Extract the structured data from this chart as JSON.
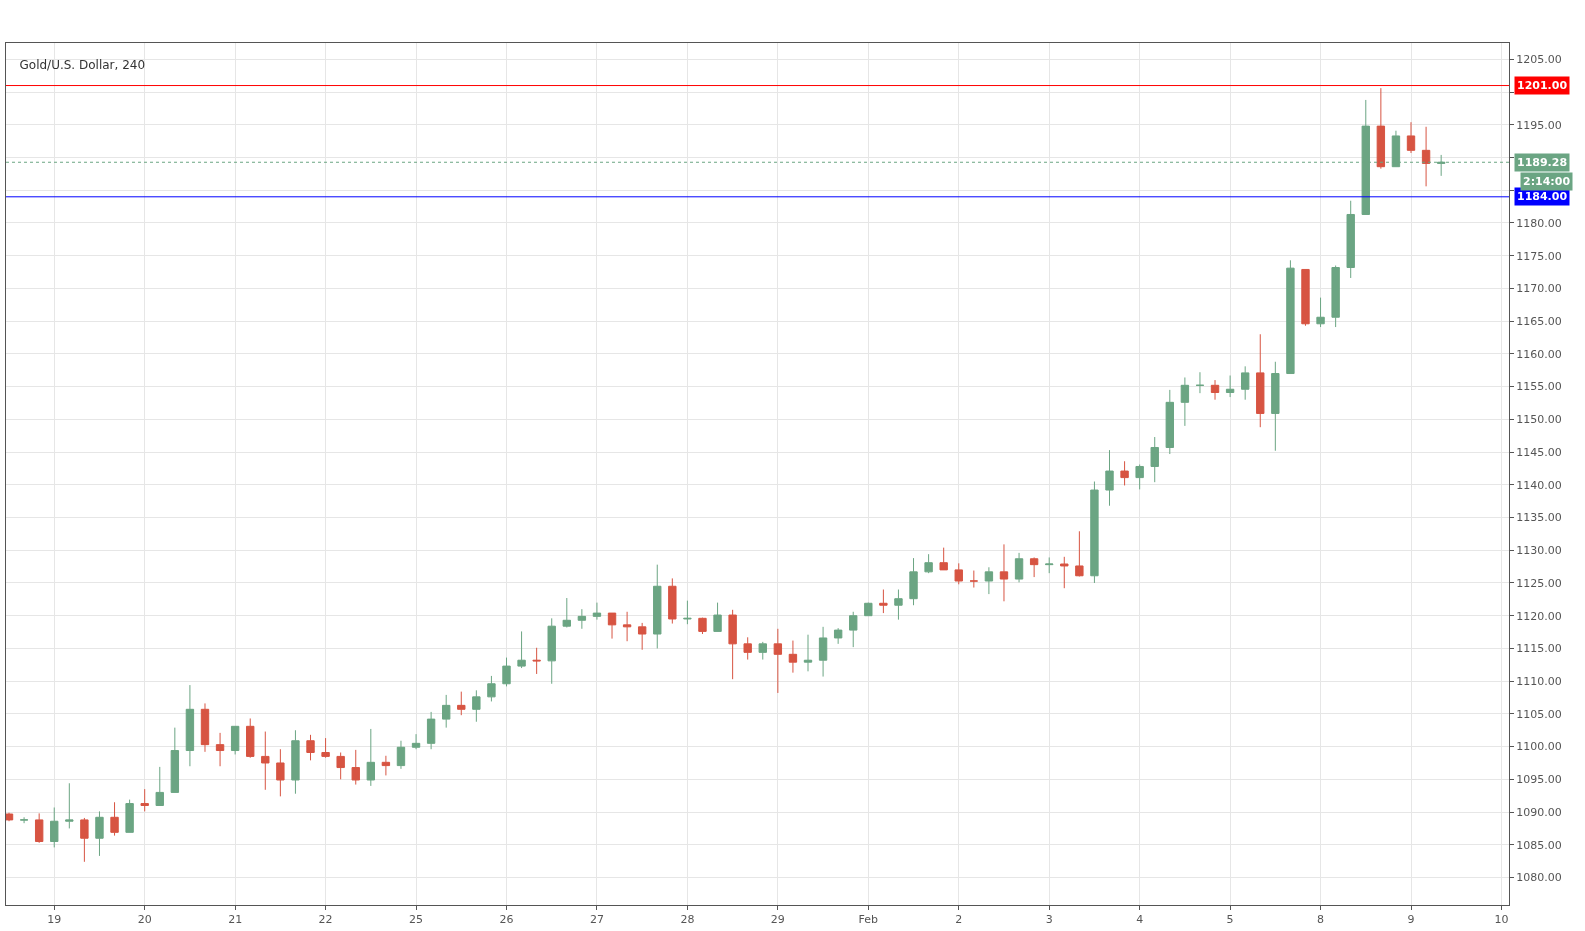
{
  "chart_data": {
    "type": "candlestick",
    "title": "Gold/U.S. Dollar, 240",
    "categories": [
      null,
      null,
      null,
      "19",
      null,
      null,
      null,
      null,
      null,
      "20",
      null,
      null,
      null,
      null,
      null,
      "21",
      null,
      null,
      null,
      null,
      null,
      "22",
      null,
      null,
      null,
      null,
      null,
      "25",
      null,
      null,
      null,
      null,
      null,
      "26",
      null,
      null,
      null,
      null,
      null,
      "27",
      null,
      null,
      null,
      null,
      null,
      "28",
      null,
      null,
      null,
      null,
      null,
      "29",
      null,
      null,
      null,
      null,
      null,
      "Feb",
      null,
      null,
      null,
      null,
      null,
      "2",
      null,
      null,
      null,
      null,
      null,
      "3",
      null,
      null,
      null,
      null,
      null,
      "4",
      null,
      null,
      null,
      null,
      null,
      "5",
      null,
      null,
      null,
      null,
      null,
      "8",
      null,
      null,
      null,
      null,
      null,
      "9",
      null,
      null,
      null,
      null,
      null,
      "10"
    ],
    "ohlc": [
      [
        1089.7,
        1089.9,
        1088.6,
        1088.8
      ],
      [
        1088.8,
        1089.2,
        1088.3,
        1088.8
      ],
      [
        1088.8,
        1089.8,
        1085.3,
        1085.5
      ],
      [
        1085.5,
        1090.7,
        1084.6,
        1088.6
      ],
      [
        1088.6,
        1094.4,
        1087.5,
        1088.8
      ],
      [
        1088.8,
        1089.1,
        1082.4,
        1086.0
      ],
      [
        1086.0,
        1090.1,
        1083.3,
        1089.2
      ],
      [
        1089.2,
        1091.5,
        1086.4,
        1086.9
      ],
      [
        1086.9,
        1091.9,
        1086.9,
        1091.3
      ],
      [
        1091.3,
        1093.5,
        1090.1,
        1091.0
      ],
      [
        1091.0,
        1096.9,
        1091.0,
        1093.0
      ],
      [
        1093.0,
        1102.9,
        1093.0,
        1099.4
      ],
      [
        1099.4,
        1109.4,
        1097.0,
        1105.7
      ],
      [
        1105.7,
        1106.6,
        1099.2,
        1100.3
      ],
      [
        1100.3,
        1102.1,
        1097.0,
        1099.4
      ],
      [
        1099.4,
        1103.1,
        1098.8,
        1103.1
      ],
      [
        1103.1,
        1104.3,
        1098.3,
        1098.5
      ],
      [
        1098.5,
        1102.3,
        1093.4,
        1097.5
      ],
      [
        1097.5,
        1099.6,
        1092.4,
        1094.9
      ],
      [
        1094.9,
        1102.5,
        1092.8,
        1100.9
      ],
      [
        1100.9,
        1101.8,
        1097.9,
        1099.1
      ],
      [
        1099.1,
        1101.3,
        1098.3,
        1098.5
      ],
      [
        1098.5,
        1099.1,
        1095.0,
        1096.8
      ],
      [
        1096.8,
        1099.5,
        1094.2,
        1094.9
      ],
      [
        1094.9,
        1102.7,
        1094.0,
        1097.6
      ],
      [
        1097.6,
        1098.6,
        1095.6,
        1097.1
      ],
      [
        1097.1,
        1100.9,
        1096.6,
        1099.9
      ],
      [
        1099.9,
        1101.9,
        1099.6,
        1100.5
      ],
      [
        1100.5,
        1105.3,
        1099.6,
        1104.2
      ],
      [
        1104.2,
        1107.9,
        1102.9,
        1106.3
      ],
      [
        1106.3,
        1108.4,
        1104.8,
        1105.7
      ],
      [
        1105.7,
        1108.6,
        1103.8,
        1107.6
      ],
      [
        1107.6,
        1110.8,
        1106.9,
        1109.6
      ],
      [
        1109.6,
        1113.6,
        1109.2,
        1112.3
      ],
      [
        1112.3,
        1117.6,
        1112.0,
        1113.2
      ],
      [
        1113.2,
        1115.1,
        1111.1,
        1113.1
      ],
      [
        1113.1,
        1119.6,
        1109.6,
        1118.4
      ],
      [
        1118.4,
        1122.7,
        1118.2,
        1119.3
      ],
      [
        1119.3,
        1121.0,
        1118.0,
        1119.9
      ],
      [
        1119.9,
        1122.0,
        1119.4,
        1120.4
      ],
      [
        1120.4,
        1120.4,
        1116.5,
        1118.6
      ],
      [
        1118.6,
        1120.6,
        1116.1,
        1118.3
      ],
      [
        1118.3,
        1118.9,
        1114.8,
        1117.2
      ],
      [
        1117.2,
        1127.8,
        1115.0,
        1124.5
      ],
      [
        1124.5,
        1125.7,
        1118.8,
        1119.5
      ],
      [
        1119.5,
        1122.3,
        1118.7,
        1119.6
      ],
      [
        1119.6,
        1119.7,
        1117.2,
        1117.6
      ],
      [
        1117.6,
        1122.0,
        1117.6,
        1120.1
      ],
      [
        1120.1,
        1120.9,
        1110.3,
        1115.7
      ],
      [
        1115.7,
        1116.7,
        1113.3,
        1114.4
      ],
      [
        1114.4,
        1116.0,
        1113.3,
        1115.7
      ],
      [
        1115.7,
        1118.0,
        1108.2,
        1114.1
      ],
      [
        1114.1,
        1116.2,
        1111.3,
        1112.9
      ],
      [
        1112.9,
        1117.1,
        1111.5,
        1113.2
      ],
      [
        1113.2,
        1118.3,
        1110.7,
        1116.6
      ],
      [
        1116.6,
        1118.1,
        1115.7,
        1117.8
      ],
      [
        1117.8,
        1120.6,
        1115.2,
        1120.0
      ],
      [
        1120.0,
        1122.0,
        1120.0,
        1121.9
      ],
      [
        1121.9,
        1124.0,
        1120.4,
        1121.6
      ],
      [
        1121.6,
        1124.0,
        1119.4,
        1122.6
      ],
      [
        1122.6,
        1128.8,
        1121.6,
        1126.7
      ],
      [
        1126.7,
        1129.4,
        1126.5,
        1128.1
      ],
      [
        1128.1,
        1130.4,
        1127.0,
        1127.0
      ],
      [
        1127.0,
        1128.0,
        1124.8,
        1125.3
      ],
      [
        1125.3,
        1126.9,
        1124.3,
        1125.3
      ],
      [
        1125.3,
        1127.4,
        1123.3,
        1126.7
      ],
      [
        1126.7,
        1130.9,
        1122.2,
        1125.6
      ],
      [
        1125.6,
        1129.6,
        1125.1,
        1128.7
      ],
      [
        1128.7,
        1128.9,
        1125.9,
        1127.8
      ],
      [
        1127.8,
        1128.9,
        1126.5,
        1127.9
      ],
      [
        1127.9,
        1129.0,
        1124.2,
        1127.6
      ],
      [
        1127.6,
        1132.9,
        1126.0,
        1126.1
      ],
      [
        1126.1,
        1140.5,
        1125.0,
        1139.2
      ],
      [
        1139.2,
        1145.3,
        1136.8,
        1142.1
      ],
      [
        1142.1,
        1143.6,
        1139.9,
        1141.1
      ],
      [
        1141.1,
        1143.1,
        1139.3,
        1142.8
      ],
      [
        1142.8,
        1147.3,
        1140.4,
        1145.7
      ],
      [
        1145.7,
        1154.5,
        1144.7,
        1152.6
      ],
      [
        1152.6,
        1156.4,
        1149.0,
        1155.2
      ],
      [
        1155.2,
        1157.2,
        1154.0,
        1155.2
      ],
      [
        1155.2,
        1156.0,
        1153.0,
        1154.1
      ],
      [
        1154.1,
        1156.7,
        1153.4,
        1154.6
      ],
      [
        1154.6,
        1158.1,
        1153.0,
        1157.1
      ],
      [
        1157.1,
        1163.0,
        1148.8,
        1150.9
      ],
      [
        1150.9,
        1158.8,
        1145.2,
        1157.0
      ],
      [
        1157.0,
        1174.3,
        1157.0,
        1173.1
      ],
      [
        1172.9,
        1172.9,
        1164.3,
        1164.6
      ],
      [
        1164.6,
        1168.6,
        1164.1,
        1165.6
      ],
      [
        1165.6,
        1173.5,
        1164.1,
        1173.2
      ],
      [
        1173.2,
        1183.4,
        1171.6,
        1181.3
      ],
      [
        1181.3,
        1198.8,
        1181.3,
        1194.8
      ],
      [
        1194.8,
        1200.6,
        1188.3,
        1188.6
      ],
      [
        1188.6,
        1194.1,
        1188.6,
        1193.3
      ],
      [
        1193.3,
        1195.4,
        1190.7,
        1191.1
      ],
      [
        1191.1,
        1194.7,
        1185.6,
        1189.1
      ],
      [
        1189.1,
        1190.4,
        1187.2,
        1189.28
      ],
      null,
      null,
      null,
      null
    ],
    "colors": [
      "#d75442",
      "#6ba583",
      "#d75442",
      "#6ba583",
      "#6ba583",
      "#d75442",
      "#6ba583",
      "#d75442",
      "#6ba583",
      "#d75442",
      "#6ba583",
      "#6ba583",
      "#6ba583",
      "#d75442",
      "#d75442",
      "#6ba583",
      "#d75442",
      "#d75442",
      "#d75442",
      "#6ba583",
      "#d75442",
      "#d75442",
      "#d75442",
      "#d75442",
      "#6ba583",
      "#d75442",
      "#6ba583",
      "#6ba583",
      "#6ba583",
      "#6ba583",
      "#d75442",
      "#6ba583",
      "#6ba583",
      "#6ba583",
      "#6ba583",
      "#d75442",
      "#6ba583",
      "#6ba583",
      "#6ba583",
      "#6ba583",
      "#d75442",
      "#d75442",
      "#d75442",
      "#6ba583",
      "#d75442",
      "#6ba583",
      "#d75442",
      "#6ba583",
      "#d75442",
      "#d75442",
      "#6ba583",
      "#d75442",
      "#d75442",
      "#6ba583",
      "#6ba583",
      "#6ba583",
      "#6ba583",
      "#6ba583",
      "#d75442",
      "#6ba583",
      "#6ba583",
      "#6ba583",
      "#d75442",
      "#d75442",
      "#d75442",
      "#6ba583",
      "#d75442",
      "#6ba583",
      "#d75442",
      "#6ba583",
      "#d75442",
      "#d75442",
      "#6ba583",
      "#6ba583",
      "#d75442",
      "#6ba583",
      "#6ba583",
      "#6ba583",
      "#6ba583",
      "#6ba583",
      "#d75442",
      "#6ba583",
      "#6ba583",
      "#d75442",
      "#6ba583",
      "#6ba583",
      "#d75442",
      "#6ba583",
      "#6ba583",
      "#6ba583",
      "#6ba583",
      "#d75442",
      "#6ba583",
      "#d75442",
      "#d75442",
      "#6ba583",
      null,
      null,
      null,
      null
    ],
    "ylim": [
      1075.8,
      1207.5
    ],
    "yticks": [
      {
        "value": 1080,
        "label": "1080.00"
      },
      {
        "value": 1085,
        "label": "1085.00"
      },
      {
        "value": 1090,
        "label": "1090.00"
      },
      {
        "value": 1095,
        "label": "1095.00"
      },
      {
        "value": 1100,
        "label": "1100.00"
      },
      {
        "value": 1105,
        "label": "1105.00"
      },
      {
        "value": 1110,
        "label": "1110.00"
      },
      {
        "value": 1115,
        "label": "1115.00"
      },
      {
        "value": 1120,
        "label": "1120.00"
      },
      {
        "value": 1125,
        "label": "1125.00"
      },
      {
        "value": 1130,
        "label": "1130.00"
      },
      {
        "value": 1135,
        "label": "1135.00"
      },
      {
        "value": 1140,
        "label": "1140.00"
      },
      {
        "value": 1145,
        "label": "1145.00"
      },
      {
        "value": 1150,
        "label": "1150.00"
      },
      {
        "value": 1155,
        "label": "1155.00"
      },
      {
        "value": 1160,
        "label": "1160.00"
      },
      {
        "value": 1165,
        "label": "1165.00"
      },
      {
        "value": 1170,
        "label": "1170.00"
      },
      {
        "value": 1175,
        "label": "1175.00"
      },
      {
        "value": 1180,
        "label": "1180.00"
      },
      {
        "value": 1185,
        "label": null
      },
      {
        "value": 1190,
        "label": null
      },
      {
        "value": 1195,
        "label": "1195.00"
      },
      {
        "value": 1200,
        "label": null
      },
      {
        "value": 1205,
        "label": "1205.00"
      }
    ],
    "ref_lines": [
      {
        "axis": "y",
        "value": 1201,
        "label": "1201.00",
        "color": "#ff0000",
        "line_style": "solid"
      },
      {
        "axis": "y",
        "value": 1184,
        "label": "1184.00",
        "color": "#0000ff",
        "line_style": "solid"
      },
      {
        "axis": "y",
        "value": 1189.28,
        "label": "1189.28",
        "color": "#6ba583",
        "line_style": "dotted"
      }
    ],
    "annotations": [
      "2:14:00"
    ],
    "grid": true
  }
}
